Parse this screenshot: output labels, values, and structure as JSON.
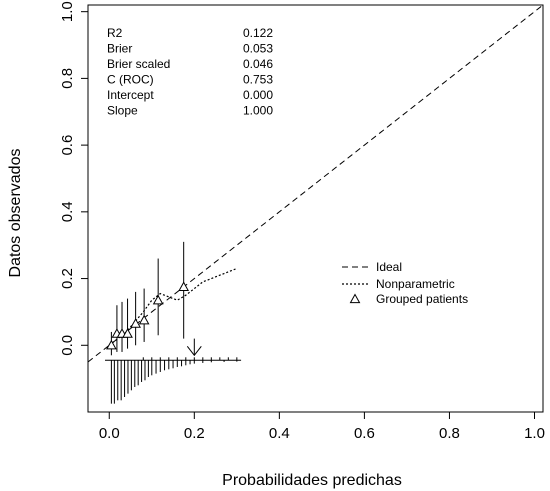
{
  "chart_data": {
    "type": "line",
    "xlabel": "Probabilidades predichas",
    "ylabel": "Datos observados",
    "xlim": [
      -0.05,
      1.02
    ],
    "ylim": [
      -0.2,
      1.02
    ],
    "x_ticks": [
      0.0,
      0.2,
      0.4,
      0.6,
      0.8,
      1.0
    ],
    "y_ticks": [
      0.0,
      0.2,
      0.4,
      0.6,
      0.8,
      1.0
    ],
    "x_tick_labels": [
      "0.0",
      "0.2",
      "0.4",
      "0.6",
      "0.8",
      "1.0"
    ],
    "y_tick_labels": [
      "0.0",
      "0.2",
      "0.4",
      "0.6",
      "0.8",
      "1.0"
    ],
    "grid": false,
    "legend_position": "center-right",
    "legend": [
      {
        "label": "Ideal",
        "style": "dashed"
      },
      {
        "label": "Nonparametric",
        "style": "dotted"
      },
      {
        "label": "Grouped patients",
        "style": "triangle"
      }
    ],
    "stats": [
      {
        "label": "R2",
        "value": "0.122"
      },
      {
        "label": "Brier",
        "value": "0.053"
      },
      {
        "label": "Brier scaled",
        "value": "0.046"
      },
      {
        "label": "C (ROC)",
        "value": "0.753"
      },
      {
        "label": "Intercept",
        "value": "0.000"
      },
      {
        "label": "Slope",
        "value": "1.000"
      }
    ],
    "series": [
      {
        "name": "Ideal",
        "x": [
          -0.05,
          1.02
        ],
        "y": [
          -0.05,
          1.02
        ]
      },
      {
        "name": "Nonparametric",
        "x": [
          0.0,
          0.02,
          0.04,
          0.06,
          0.08,
          0.1,
          0.12,
          0.14,
          0.16,
          0.18,
          0.2,
          0.22,
          0.24,
          0.26,
          0.28,
          0.3
        ],
        "y": [
          0.0,
          0.02,
          0.04,
          0.07,
          0.1,
          0.135,
          0.155,
          0.145,
          0.135,
          0.15,
          0.17,
          0.19,
          0.2,
          0.21,
          0.22,
          0.23
        ]
      },
      {
        "name": "Grouped patients",
        "x": [
          0.005,
          0.018,
          0.03,
          0.043,
          0.062,
          0.082,
          0.115,
          0.175
        ],
        "y": [
          0.0,
          0.035,
          0.035,
          0.035,
          0.065,
          0.075,
          0.135,
          0.175
        ],
        "ci_low": [
          -0.03,
          -0.02,
          -0.02,
          -0.01,
          0.0,
          0.01,
          0.03,
          0.02
        ],
        "ci_high": [
          0.04,
          0.12,
          0.13,
          0.14,
          0.16,
          0.17,
          0.26,
          0.31
        ]
      }
    ],
    "cutoff_arrow_x": 0.2,
    "rug_baseline_y": -0.045,
    "rug_positive_x": [
      0.08,
      0.1,
      0.12,
      0.14,
      0.16,
      0.18,
      0.2,
      0.22,
      0.24,
      0.26,
      0.28,
      0.3
    ],
    "rug_negative_x": [
      0.005,
      0.012,
      0.02,
      0.028,
      0.036,
      0.044,
      0.052,
      0.06,
      0.068,
      0.076,
      0.084,
      0.092,
      0.1,
      0.11,
      0.12,
      0.13,
      0.14,
      0.15,
      0.16,
      0.17,
      0.18,
      0.19,
      0.2,
      0.22,
      0.24,
      0.27,
      0.3
    ],
    "rug_negative_len": [
      0.13,
      0.13,
      0.12,
      0.12,
      0.11,
      0.1,
      0.09,
      0.08,
      0.075,
      0.065,
      0.06,
      0.05,
      0.045,
      0.04,
      0.035,
      0.03,
      0.027,
      0.024,
      0.02,
      0.018,
      0.015,
      0.012,
      0.01,
      0.008,
      0.006,
      0.005,
      0.004
    ]
  }
}
